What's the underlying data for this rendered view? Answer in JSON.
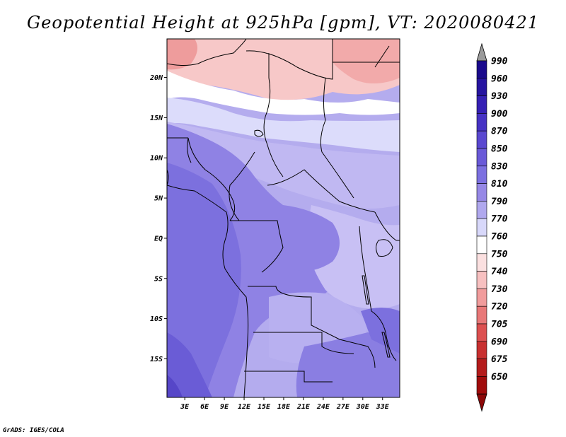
{
  "title": "Geopotential Height at 925hPa [gpm], VT: 2020080421",
  "credit": "GrADS: IGES/COLA",
  "map": {
    "variable": "Geopotential Height",
    "level": "925hPa",
    "units": "gpm",
    "valid_time": "2020080421",
    "lat_labels": [
      "20N",
      "15N",
      "10N",
      "5N",
      "EQ",
      "5S",
      "10S",
      "15S"
    ],
    "lon_labels": [
      "3E",
      "6E",
      "9E",
      "12E",
      "15E",
      "18E",
      "21E",
      "24E",
      "27E",
      "30E",
      "33E"
    ],
    "lat_values": [
      20,
      15,
      10,
      5,
      0,
      -5,
      -10,
      -15
    ],
    "lon_values": [
      3,
      6,
      9,
      12,
      15,
      18,
      21,
      24,
      27,
      30,
      33
    ],
    "extent": {
      "lon_min": 0.3,
      "lon_max": 35.6,
      "lat_min": -19.8,
      "lat_max": 24.8
    }
  },
  "colorbar": {
    "labels": [
      "990",
      "960",
      "930",
      "900",
      "870",
      "850",
      "830",
      "810",
      "790",
      "770",
      "760",
      "750",
      "740",
      "730",
      "720",
      "705",
      "690",
      "675",
      "650"
    ],
    "colors": [
      "#1a0a8c",
      "#2614a0",
      "#3520b4",
      "#4632c4",
      "#5a48d0",
      "#6a5ad8",
      "#7c70e0",
      "#9688e6",
      "#b0a8ee",
      "#d8d8fa",
      "#ffffff",
      "#fbe0e0",
      "#f7c0c0",
      "#f19c9c",
      "#e87878",
      "#dc5050",
      "#c83030",
      "#b41c1c",
      "#a00c0c"
    ],
    "top_triangle_color": "#9a9a9a",
    "bottom_triangle_color": "#8c0808"
  }
}
